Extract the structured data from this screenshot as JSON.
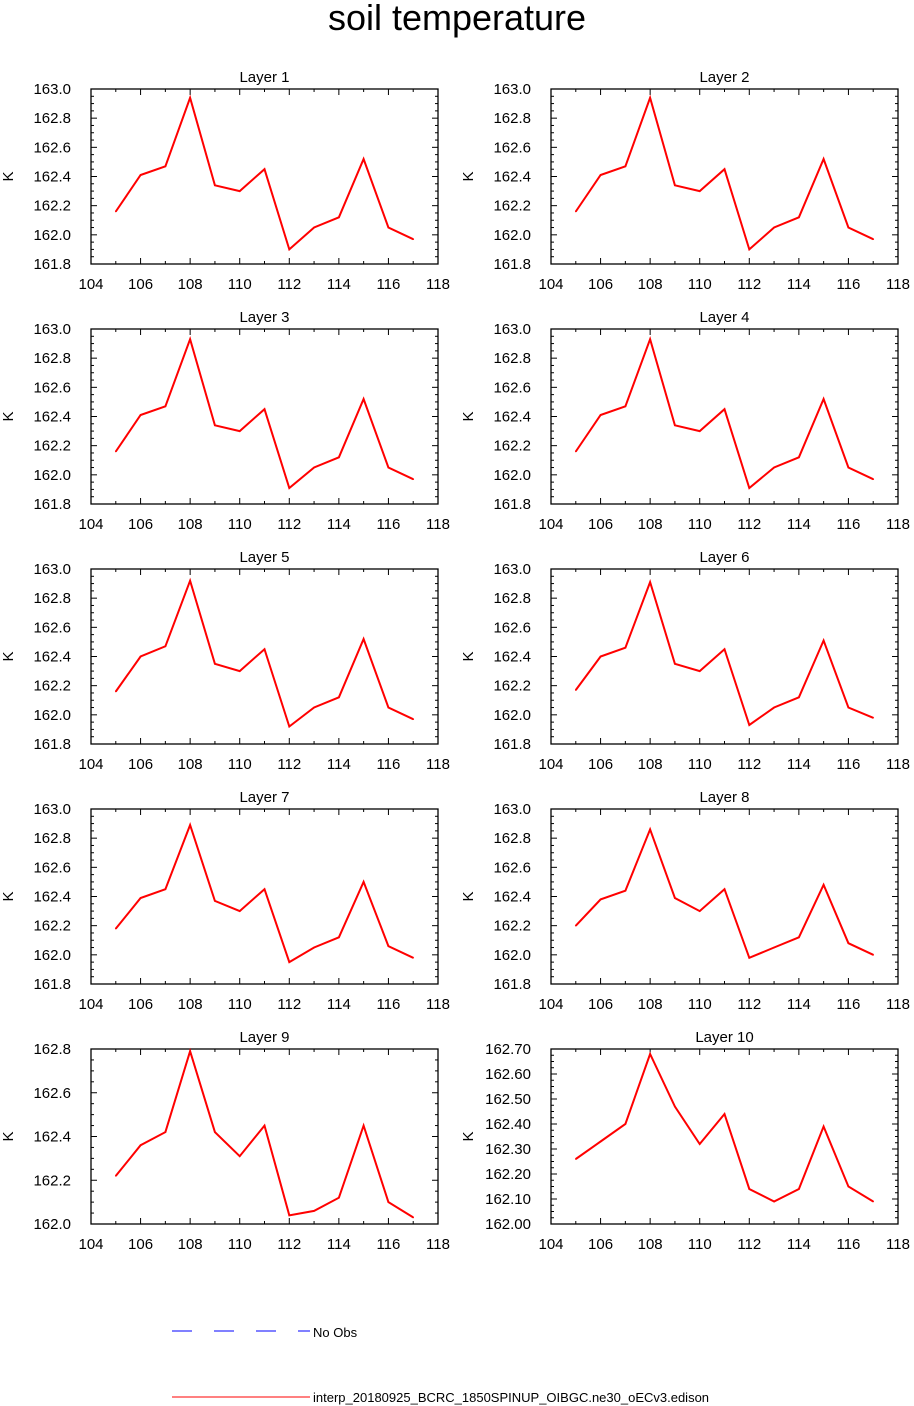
{
  "title": "soil temperature",
  "colors": {
    "model_line": "#ff0000",
    "obs_line": "#0000ff",
    "axis": "#000000"
  },
  "legend": [
    {
      "label": "No Obs",
      "style": "dashed",
      "color": "#0000ff"
    },
    {
      "label": "interp_20180925_BCRC_1850SPINUP_OIBGC.ne30_oECv3.edison",
      "style": "solid",
      "color": "#ff0000"
    }
  ],
  "chart_data": [
    {
      "type": "line",
      "title": "Layer 1",
      "ylabel": "K",
      "xlim": [
        104,
        118
      ],
      "xticks": [
        "104",
        "106",
        "108",
        "110",
        "112",
        "114",
        "116",
        "118"
      ],
      "ylim": [
        161.8,
        163.0
      ],
      "yticks": [
        "161.8",
        "162.0",
        "162.2",
        "162.4",
        "162.6",
        "162.8",
        "163.0"
      ],
      "x": [
        105,
        106,
        107,
        108,
        109,
        110,
        111,
        112,
        113,
        114,
        115,
        116,
        117
      ],
      "series": [
        {
          "values": [
            162.16,
            162.41,
            162.47,
            162.94,
            162.34,
            162.3,
            162.45,
            161.9,
            162.05,
            162.12,
            162.52,
            162.05,
            161.97
          ]
        }
      ]
    },
    {
      "type": "line",
      "title": "Layer 2",
      "ylabel": "K",
      "xlim": [
        104,
        118
      ],
      "xticks": [
        "104",
        "106",
        "108",
        "110",
        "112",
        "114",
        "116",
        "118"
      ],
      "ylim": [
        161.8,
        163.0
      ],
      "yticks": [
        "161.8",
        "162.0",
        "162.2",
        "162.4",
        "162.6",
        "162.8",
        "163.0"
      ],
      "x": [
        105,
        106,
        107,
        108,
        109,
        110,
        111,
        112,
        113,
        114,
        115,
        116,
        117
      ],
      "series": [
        {
          "values": [
            162.16,
            162.41,
            162.47,
            162.94,
            162.34,
            162.3,
            162.45,
            161.9,
            162.05,
            162.12,
            162.52,
            162.05,
            161.97
          ]
        }
      ]
    },
    {
      "type": "line",
      "title": "Layer 3",
      "ylabel": "K",
      "xlim": [
        104,
        118
      ],
      "xticks": [
        "104",
        "106",
        "108",
        "110",
        "112",
        "114",
        "116",
        "118"
      ],
      "ylim": [
        161.8,
        163.0
      ],
      "yticks": [
        "161.8",
        "162.0",
        "162.2",
        "162.4",
        "162.6",
        "162.8",
        "163.0"
      ],
      "x": [
        105,
        106,
        107,
        108,
        109,
        110,
        111,
        112,
        113,
        114,
        115,
        116,
        117
      ],
      "series": [
        {
          "values": [
            162.16,
            162.41,
            162.47,
            162.93,
            162.34,
            162.3,
            162.45,
            161.91,
            162.05,
            162.12,
            162.52,
            162.05,
            161.97
          ]
        }
      ]
    },
    {
      "type": "line",
      "title": "Layer 4",
      "ylabel": "K",
      "xlim": [
        104,
        118
      ],
      "xticks": [
        "104",
        "106",
        "108",
        "110",
        "112",
        "114",
        "116",
        "118"
      ],
      "ylim": [
        161.8,
        163.0
      ],
      "yticks": [
        "161.8",
        "162.0",
        "162.2",
        "162.4",
        "162.6",
        "162.8",
        "163.0"
      ],
      "x": [
        105,
        106,
        107,
        108,
        109,
        110,
        111,
        112,
        113,
        114,
        115,
        116,
        117
      ],
      "series": [
        {
          "values": [
            162.16,
            162.41,
            162.47,
            162.93,
            162.34,
            162.3,
            162.45,
            161.91,
            162.05,
            162.12,
            162.52,
            162.05,
            161.97
          ]
        }
      ]
    },
    {
      "type": "line",
      "title": "Layer 5",
      "ylabel": "K",
      "xlim": [
        104,
        118
      ],
      "xticks": [
        "104",
        "106",
        "108",
        "110",
        "112",
        "114",
        "116",
        "118"
      ],
      "ylim": [
        161.8,
        163.0
      ],
      "yticks": [
        "161.8",
        "162.0",
        "162.2",
        "162.4",
        "162.6",
        "162.8",
        "163.0"
      ],
      "x": [
        105,
        106,
        107,
        108,
        109,
        110,
        111,
        112,
        113,
        114,
        115,
        116,
        117
      ],
      "series": [
        {
          "values": [
            162.16,
            162.4,
            162.47,
            162.92,
            162.35,
            162.3,
            162.45,
            161.92,
            162.05,
            162.12,
            162.52,
            162.05,
            161.97
          ]
        }
      ]
    },
    {
      "type": "line",
      "title": "Layer 6",
      "ylabel": "K",
      "xlim": [
        104,
        118
      ],
      "xticks": [
        "104",
        "106",
        "108",
        "110",
        "112",
        "114",
        "116",
        "118"
      ],
      "ylim": [
        161.8,
        163.0
      ],
      "yticks": [
        "161.8",
        "162.0",
        "162.2",
        "162.4",
        "162.6",
        "162.8",
        "163.0"
      ],
      "x": [
        105,
        106,
        107,
        108,
        109,
        110,
        111,
        112,
        113,
        114,
        115,
        116,
        117
      ],
      "series": [
        {
          "values": [
            162.17,
            162.4,
            162.46,
            162.91,
            162.35,
            162.3,
            162.45,
            161.93,
            162.05,
            162.12,
            162.51,
            162.05,
            161.98
          ]
        }
      ]
    },
    {
      "type": "line",
      "title": "Layer 7",
      "ylabel": "K",
      "xlim": [
        104,
        118
      ],
      "xticks": [
        "104",
        "106",
        "108",
        "110",
        "112",
        "114",
        "116",
        "118"
      ],
      "ylim": [
        161.8,
        163.0
      ],
      "yticks": [
        "161.8",
        "162.0",
        "162.2",
        "162.4",
        "162.6",
        "162.8",
        "163.0"
      ],
      "x": [
        105,
        106,
        107,
        108,
        109,
        110,
        111,
        112,
        113,
        114,
        115,
        116,
        117
      ],
      "series": [
        {
          "values": [
            162.18,
            162.39,
            162.45,
            162.89,
            162.37,
            162.3,
            162.45,
            161.95,
            162.05,
            162.12,
            162.5,
            162.06,
            161.98
          ]
        }
      ]
    },
    {
      "type": "line",
      "title": "Layer 8",
      "ylabel": "K",
      "xlim": [
        104,
        118
      ],
      "xticks": [
        "104",
        "106",
        "108",
        "110",
        "112",
        "114",
        "116",
        "118"
      ],
      "ylim": [
        161.8,
        163.0
      ],
      "yticks": [
        "161.8",
        "162.0",
        "162.2",
        "162.4",
        "162.6",
        "162.8",
        "163.0"
      ],
      "x": [
        105,
        106,
        107,
        108,
        109,
        110,
        111,
        112,
        113,
        114,
        115,
        116,
        117
      ],
      "series": [
        {
          "values": [
            162.2,
            162.38,
            162.44,
            162.86,
            162.39,
            162.3,
            162.45,
            161.98,
            162.05,
            162.12,
            162.48,
            162.08,
            162.0
          ]
        }
      ]
    },
    {
      "type": "line",
      "title": "Layer 9",
      "ylabel": "K",
      "xlim": [
        104,
        118
      ],
      "xticks": [
        "104",
        "106",
        "108",
        "110",
        "112",
        "114",
        "116",
        "118"
      ],
      "ylim": [
        162.0,
        162.8
      ],
      "yticks": [
        "162.0",
        "162.2",
        "162.4",
        "162.6",
        "162.8"
      ],
      "x": [
        105,
        106,
        107,
        108,
        109,
        110,
        111,
        112,
        113,
        114,
        115,
        116,
        117
      ],
      "series": [
        {
          "values": [
            162.22,
            162.36,
            162.42,
            162.79,
            162.42,
            162.31,
            162.45,
            162.04,
            162.06,
            162.12,
            162.45,
            162.1,
            162.03
          ]
        }
      ]
    },
    {
      "type": "line",
      "title": "Layer 10",
      "ylabel": "K",
      "xlim": [
        104,
        118
      ],
      "xticks": [
        "104",
        "106",
        "108",
        "110",
        "112",
        "114",
        "116",
        "118"
      ],
      "ylim": [
        162.0,
        162.7
      ],
      "yticks": [
        "162.00",
        "162.10",
        "162.20",
        "162.30",
        "162.40",
        "162.50",
        "162.60",
        "162.70"
      ],
      "x": [
        105,
        106,
        107,
        108,
        109,
        110,
        111,
        112,
        113,
        114,
        115,
        116,
        117
      ],
      "series": [
        {
          "values": [
            162.26,
            162.33,
            162.4,
            162.68,
            162.47,
            162.32,
            162.44,
            162.14,
            162.09,
            162.14,
            162.39,
            162.15,
            162.09
          ]
        }
      ]
    }
  ]
}
